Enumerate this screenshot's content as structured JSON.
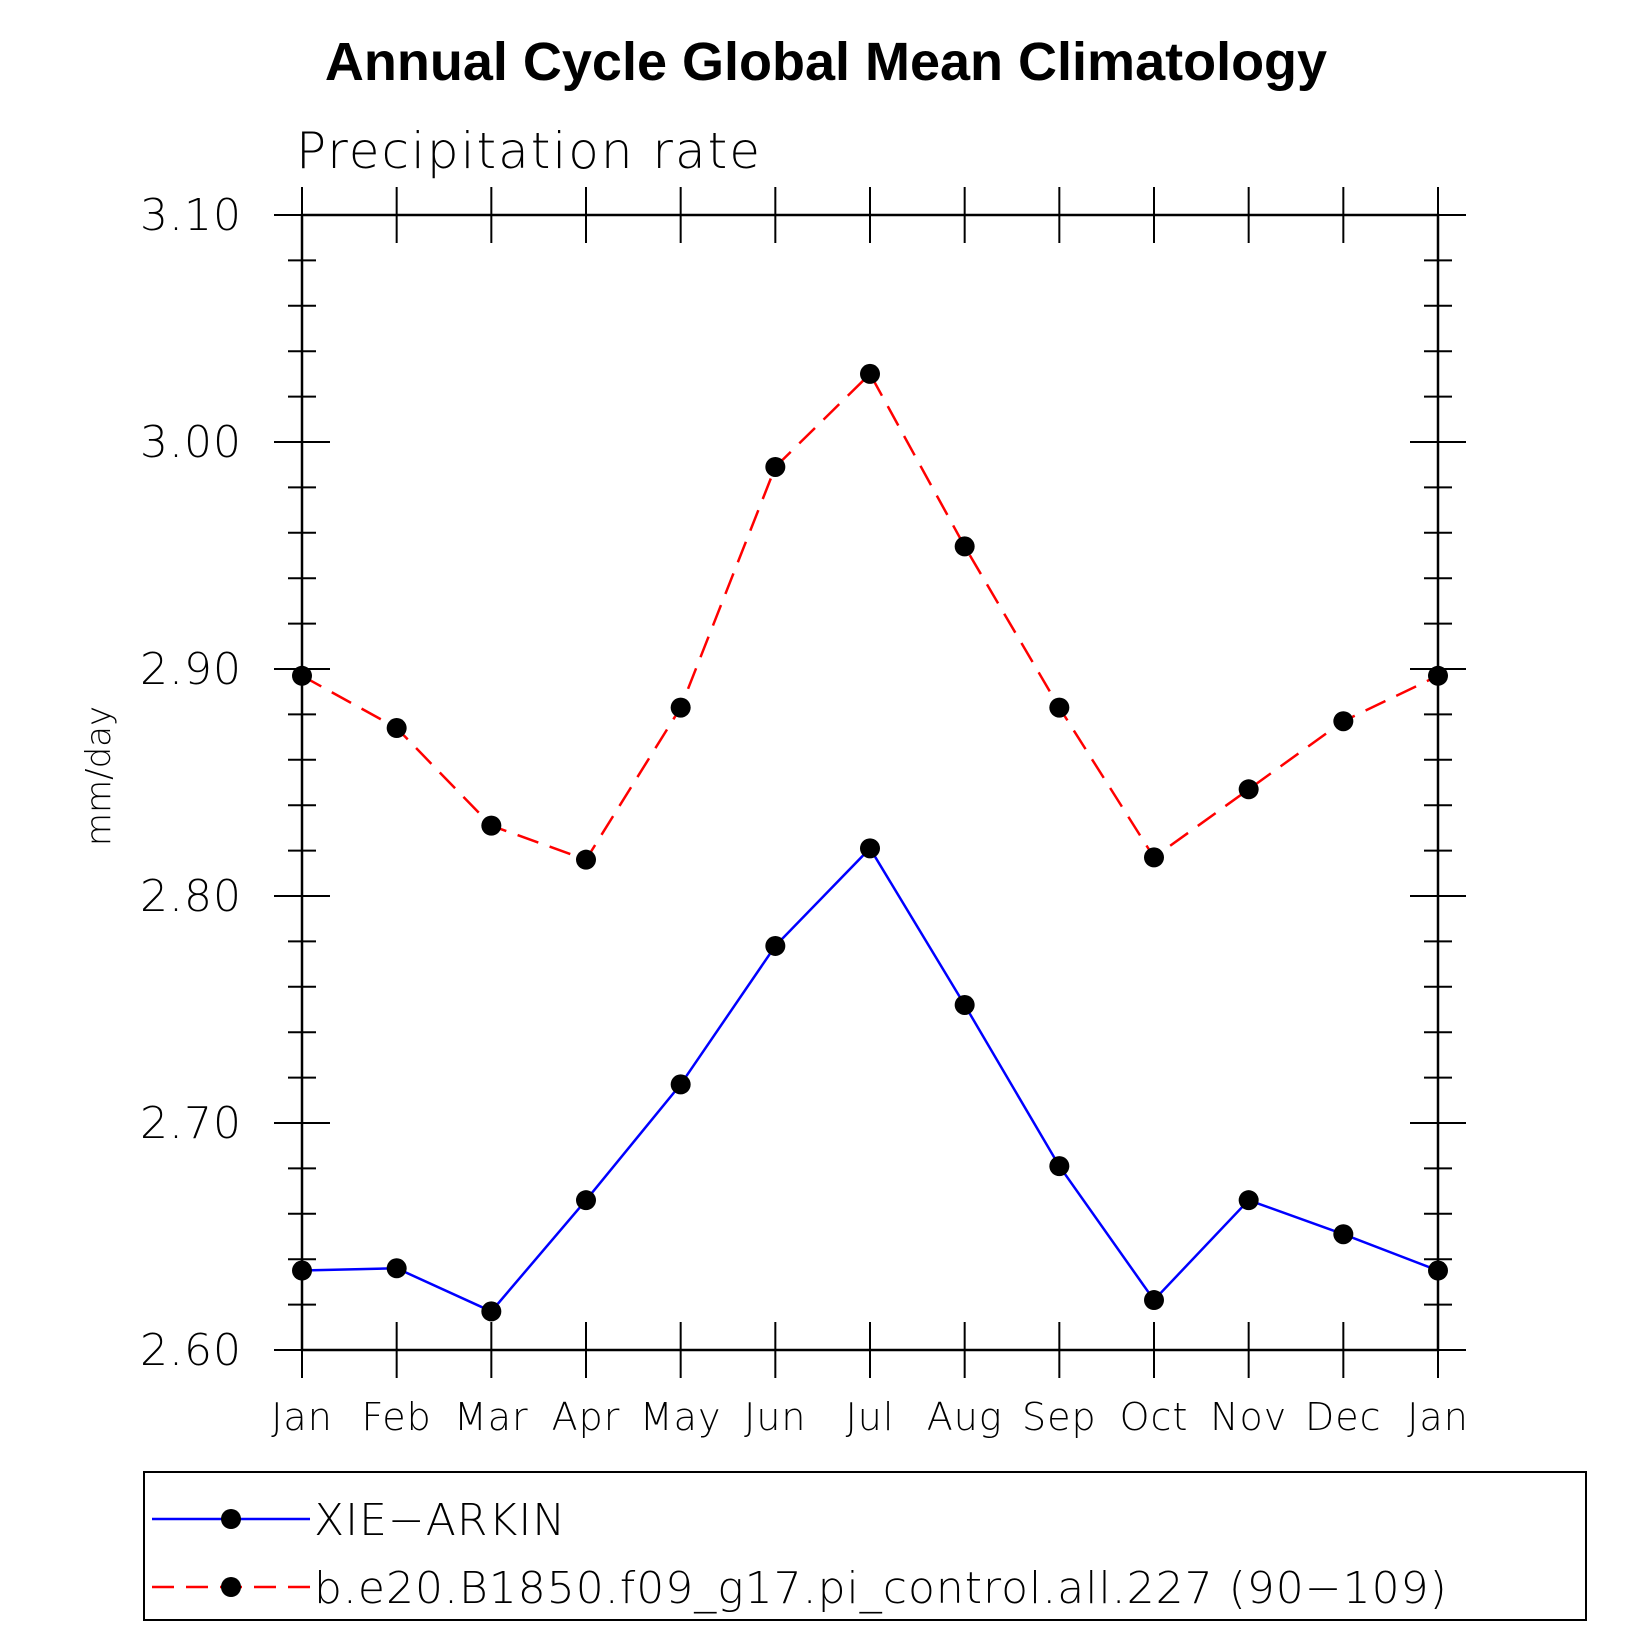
{
  "chart_data": {
    "type": "line",
    "title": "Annual Cycle Global Mean Climatology",
    "subtitle": "Precipitation rate",
    "ylabel": "mm/day",
    "xlabel": "",
    "categories": [
      "Jan",
      "Feb",
      "Mar",
      "Apr",
      "May",
      "Jun",
      "Jul",
      "Aug",
      "Sep",
      "Oct",
      "Nov",
      "Dec",
      "Jan"
    ],
    "ylim": [
      2.6,
      3.1
    ],
    "yticks": [
      "2.60",
      "2.70",
      "2.80",
      "2.90",
      "3.00",
      "3.10"
    ],
    "grid": false,
    "legend_position": "bottom",
    "series": [
      {
        "name": "XIE−ARKIN",
        "color": "#0000ff",
        "line_style": "solid",
        "marker": "filled-circle",
        "values": [
          2.635,
          2.636,
          2.617,
          2.666,
          2.717,
          2.778,
          2.821,
          2.752,
          2.681,
          2.622,
          2.666,
          2.651,
          2.635
        ]
      },
      {
        "name": "b.e20.B1850.f09_g17.pi_control.all.227 (90−109)",
        "color": "#ff0000",
        "line_style": "dashed",
        "marker": "filled-circle",
        "values": [
          2.897,
          2.874,
          2.831,
          2.816,
          2.883,
          2.989,
          3.03,
          2.954,
          2.883,
          2.817,
          2.847,
          2.877,
          2.897
        ]
      }
    ]
  }
}
